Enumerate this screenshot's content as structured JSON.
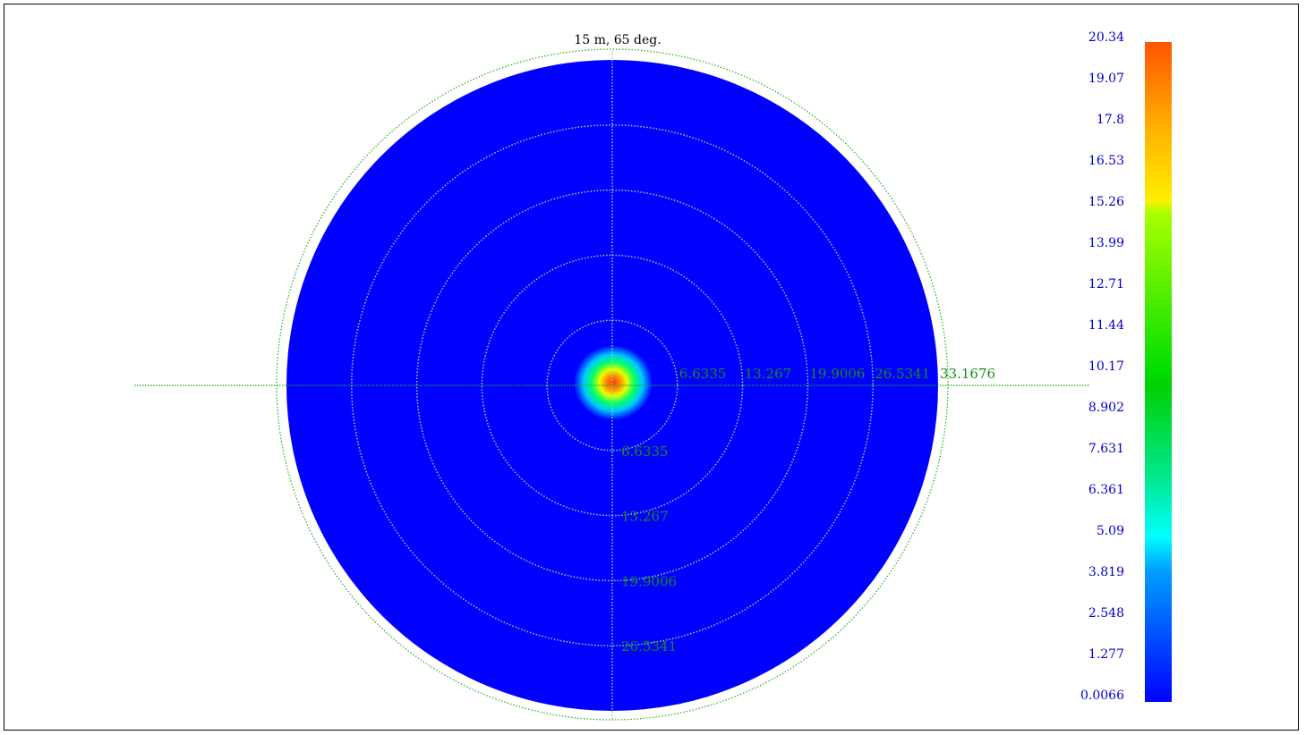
{
  "chart_data": {
    "type": "heatmap",
    "subtype": "polar",
    "title": "15 m, 65 deg.",
    "ring_labels": [
      "6.6335",
      "13.267",
      "19.9006",
      "26.5341",
      "33.1676"
    ],
    "ring_values": [
      6.6335,
      13.267,
      19.9006,
      26.5341,
      33.1676
    ],
    "radial_max": 33.1676,
    "peak_location": [
      0,
      0
    ],
    "peak_value": 20.34,
    "background_value": 0.0066,
    "colorbar": {
      "min": 0.0066,
      "max": 20.34,
      "tick_labels": [
        "20.34",
        "19.07",
        "17.8",
        "16.53",
        "15.26",
        "13.99",
        "12.71",
        "11.44",
        "10.17",
        "8.902",
        "7.631",
        "6.361",
        "5.09",
        "3.819",
        "2.548",
        "1.277",
        "0.0066"
      ],
      "colors": [
        "#0000ff",
        "#00ccff",
        "#00ff80",
        "#00dd00",
        "#d0ff00",
        "#ffee00",
        "#ff5500"
      ]
    },
    "grid": true,
    "grid_color": "#22aa22"
  }
}
